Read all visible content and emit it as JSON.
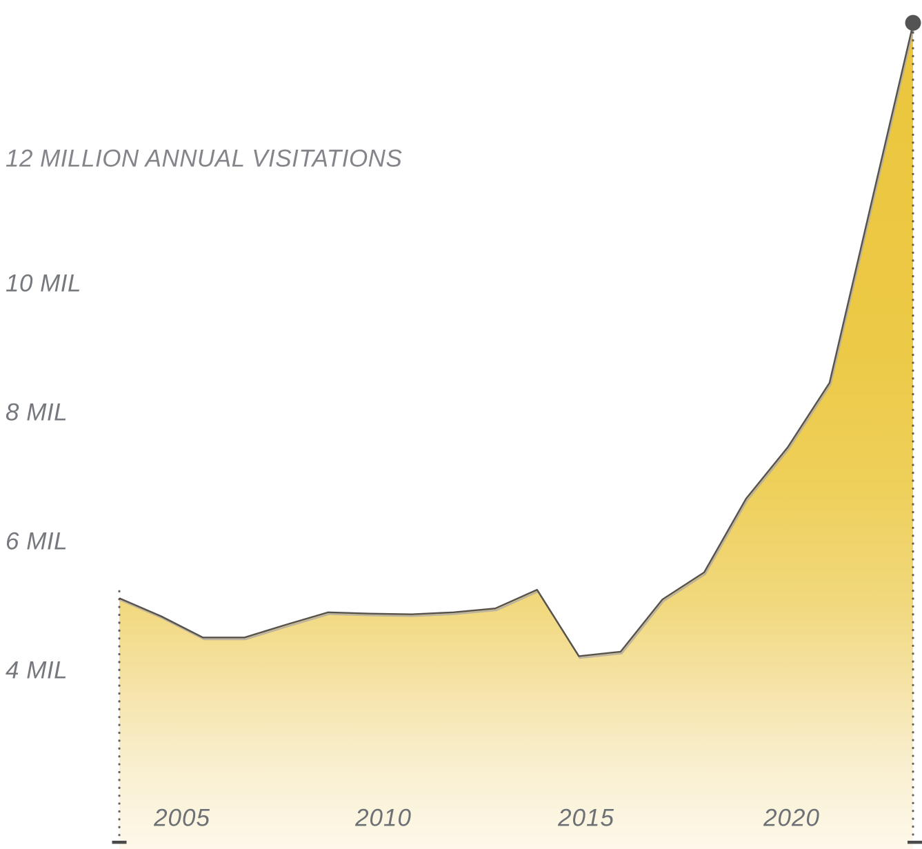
{
  "chart_data": {
    "type": "area",
    "title": "12 MILLION ANNUAL VISITATIONS",
    "unit": "millions of annual visitations",
    "x": [
      2004,
      2005,
      2006,
      2007,
      2008,
      2009,
      2010,
      2011,
      2012,
      2013,
      2014,
      2015,
      2016,
      2017,
      2018,
      2019,
      2020,
      2021,
      2022,
      2023
    ],
    "values": [
      5.12,
      4.84,
      4.51,
      4.51,
      4.71,
      4.9,
      4.88,
      4.87,
      4.9,
      4.96,
      5.25,
      4.22,
      4.29,
      5.1,
      5.52,
      6.66,
      7.46,
      8.46,
      11.24,
      14.02
    ],
    "x_axis": {
      "tick_labels": [
        "2005",
        "2010",
        "2015",
        "2020"
      ],
      "tick_years": [
        2005,
        2010,
        2015,
        2020
      ]
    },
    "y_axis": {
      "tick_labels": [
        "4 MIL",
        "6 MIL",
        "8 MIL",
        "10 MIL"
      ],
      "tick_values": [
        4,
        6,
        8,
        10
      ],
      "title_level_value": 12
    },
    "last_point": {
      "year": 2023,
      "value": 14.0,
      "has_marker": true
    },
    "first_point": {
      "year": 2004,
      "value": 5.1
    },
    "gridlines": false,
    "legend": "none",
    "colors": {
      "area_top": "#ebc63d",
      "area_bottom": "#fdf8ea",
      "line": "#56514b",
      "line_shadow": "#b3ada5",
      "marker": "#545454",
      "dotted_guide": "#3f3f3f",
      "axis_tick": "#4b4b4b",
      "label_text": "#75787d"
    }
  }
}
